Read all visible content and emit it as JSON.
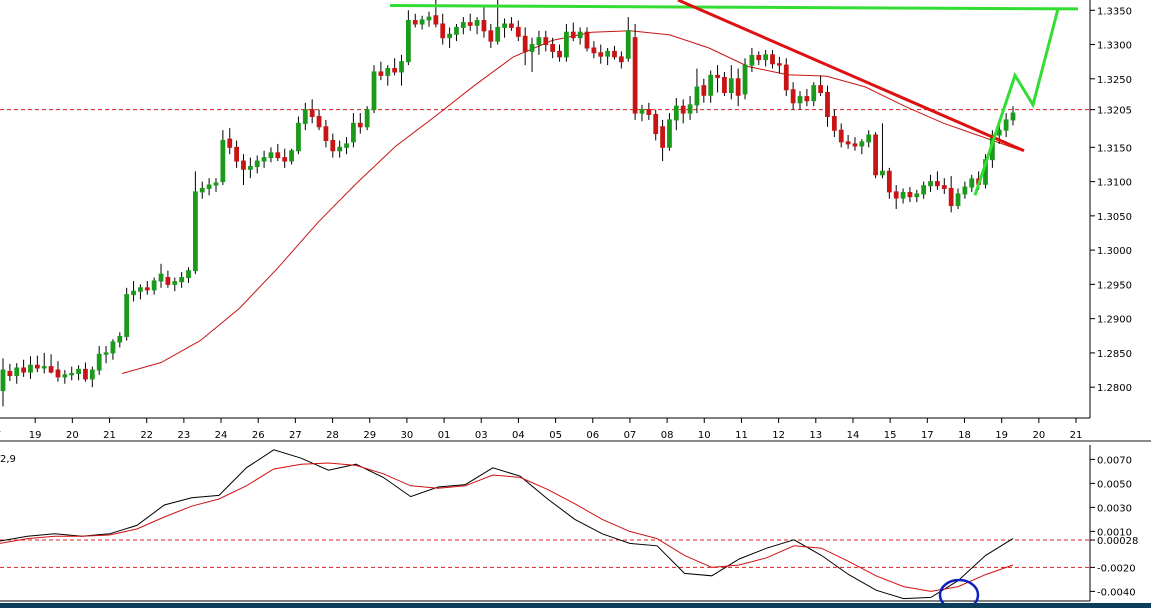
{
  "colors": {
    "bull_candle": "#1a9a1a",
    "bear_candle": "#c81414",
    "moving_average": "#c81414",
    "resistance_line": "#33dd33",
    "trendline": "#dd1111",
    "projection": "#33dd33",
    "reference_line": "#dd2222",
    "macd": "#000000",
    "signal": "#d01010",
    "highlight_circle": "#1020c0",
    "axis": "#000000",
    "separator": "#8a8a8a",
    "bottom_bar": "#0d3d5c"
  },
  "chart_data": [
    {
      "type": "candlestick",
      "title": "",
      "xlabel": "",
      "ylabel": "",
      "y_ticks": [
        "1.3350",
        "1.3300",
        "1.3250",
        "1.3205",
        "1.3150",
        "1.3100",
        "1.3050",
        "1.3000",
        "1.2950",
        "1.2900",
        "1.2850",
        "1.2800"
      ],
      "x_ticks": [
        "7",
        "19",
        "20",
        "21",
        "22",
        "23",
        "24",
        "26",
        "27",
        "28",
        "29",
        "30",
        "01",
        "03",
        "04",
        "05",
        "06",
        "07",
        "08",
        "10",
        "11",
        "12",
        "13",
        "14",
        "15",
        "17",
        "18",
        "19",
        "20",
        "21"
      ],
      "ylim": [
        1.2755,
        1.3365
      ],
      "reference_level": 1.3205,
      "candles": [
        [
          1.2795,
          1.2842,
          1.2772,
          1.2825
        ],
        [
          1.2823,
          1.2834,
          1.2809,
          1.2817
        ],
        [
          1.2817,
          1.2835,
          1.2805,
          1.2828
        ],
        [
          1.2828,
          1.284,
          1.2815,
          1.2822
        ],
        [
          1.2822,
          1.2845,
          1.2812,
          1.2832
        ],
        [
          1.2832,
          1.2846,
          1.2822,
          1.2828
        ],
        [
          1.2828,
          1.285,
          1.282,
          1.283
        ],
        [
          1.283,
          1.2848,
          1.282,
          1.2822
        ],
        [
          1.2825,
          1.2838,
          1.2808,
          1.2815
        ],
        [
          1.2815,
          1.2825,
          1.2805,
          1.2818
        ],
        [
          1.2818,
          1.283,
          1.281,
          1.282
        ],
        [
          1.282,
          1.2832,
          1.281,
          1.2826
        ],
        [
          1.2826,
          1.2836,
          1.2808,
          1.2812
        ],
        [
          1.2812,
          1.283,
          1.28,
          1.2825
        ],
        [
          1.2825,
          1.286,
          1.2818,
          1.2848
        ],
        [
          1.2848,
          1.286,
          1.2835,
          1.285
        ],
        [
          1.285,
          1.287,
          1.284,
          1.2866
        ],
        [
          1.2866,
          1.288,
          1.2858,
          1.2874
        ],
        [
          1.2874,
          1.2945,
          1.2868,
          1.2935
        ],
        [
          1.2935,
          1.2955,
          1.2925,
          1.294
        ],
        [
          1.294,
          1.295,
          1.2928,
          1.2945
        ],
        [
          1.2945,
          1.2955,
          1.2935,
          1.2942
        ],
        [
          1.2942,
          1.296,
          1.2935,
          1.2955
        ],
        [
          1.2955,
          1.298,
          1.2945,
          1.2965
        ],
        [
          1.296,
          1.297,
          1.2945,
          1.295
        ],
        [
          1.295,
          1.296,
          1.294,
          1.2954
        ],
        [
          1.2954,
          1.2968,
          1.2945,
          1.296
        ],
        [
          1.296,
          1.2975,
          1.2952,
          1.297
        ],
        [
          1.297,
          1.3115,
          1.2965,
          1.3085
        ],
        [
          1.3085,
          1.31,
          1.3075,
          1.309
        ],
        [
          1.309,
          1.3105,
          1.308,
          1.3095
        ],
        [
          1.3095,
          1.3105,
          1.3085,
          1.3098
        ],
        [
          1.31,
          1.3175,
          1.3095,
          1.316
        ],
        [
          1.3162,
          1.3178,
          1.314,
          1.315
        ],
        [
          1.315,
          1.316,
          1.312,
          1.313
        ],
        [
          1.313,
          1.314,
          1.3095,
          1.3118
        ],
        [
          1.3118,
          1.3135,
          1.3105,
          1.3122
        ],
        [
          1.3122,
          1.3138,
          1.3112,
          1.313
        ],
        [
          1.313,
          1.3145,
          1.312,
          1.3135
        ],
        [
          1.3135,
          1.315,
          1.3128,
          1.3142
        ],
        [
          1.3142,
          1.3155,
          1.313,
          1.3135
        ],
        [
          1.3135,
          1.3148,
          1.312,
          1.313
        ],
        [
          1.313,
          1.3148,
          1.3125,
          1.3145
        ],
        [
          1.3145,
          1.3195,
          1.314,
          1.3185
        ],
        [
          1.3185,
          1.3215,
          1.3175,
          1.3205
        ],
        [
          1.3205,
          1.322,
          1.3185,
          1.3195
        ],
        [
          1.3195,
          1.3205,
          1.3175,
          1.318
        ],
        [
          1.318,
          1.319,
          1.315,
          1.316
        ],
        [
          1.316,
          1.317,
          1.3135,
          1.3145
        ],
        [
          1.3145,
          1.316,
          1.3135,
          1.315
        ],
        [
          1.315,
          1.3165,
          1.314,
          1.3155
        ],
        [
          1.3158,
          1.32,
          1.315,
          1.3185
        ],
        [
          1.3185,
          1.32,
          1.317,
          1.318
        ],
        [
          1.318,
          1.321,
          1.3175,
          1.3205
        ],
        [
          1.3205,
          1.327,
          1.32,
          1.326
        ],
        [
          1.326,
          1.3275,
          1.3248,
          1.3255
        ],
        [
          1.3255,
          1.327,
          1.324,
          1.3265
        ],
        [
          1.3265,
          1.328,
          1.3255,
          1.326
        ],
        [
          1.326,
          1.3285,
          1.324,
          1.3275
        ],
        [
          1.3275,
          1.335,
          1.327,
          1.3335
        ],
        [
          1.3335,
          1.3345,
          1.3325,
          1.333
        ],
        [
          1.333,
          1.3342,
          1.3322,
          1.3336
        ],
        [
          1.3336,
          1.3348,
          1.3326,
          1.334
        ],
        [
          1.3342,
          1.3365,
          1.3325,
          1.333
        ],
        [
          1.333,
          1.3345,
          1.33,
          1.331
        ],
        [
          1.331,
          1.3325,
          1.3295,
          1.3315
        ],
        [
          1.3315,
          1.333,
          1.3305,
          1.3325
        ],
        [
          1.3325,
          1.334,
          1.3315,
          1.3332
        ],
        [
          1.3332,
          1.3345,
          1.332,
          1.3328
        ],
        [
          1.3328,
          1.334,
          1.3315,
          1.3335
        ],
        [
          1.3335,
          1.3355,
          1.331,
          1.332
        ],
        [
          1.332,
          1.333,
          1.3295,
          1.3305
        ],
        [
          1.3305,
          1.3365,
          1.33,
          1.3325
        ],
        [
          1.3325,
          1.3338,
          1.331,
          1.333
        ],
        [
          1.333,
          1.334,
          1.332,
          1.3325
        ],
        [
          1.3325,
          1.3335,
          1.3305,
          1.3312
        ],
        [
          1.3312,
          1.3325,
          1.327,
          1.329
        ],
        [
          1.329,
          1.331,
          1.326,
          1.33
        ],
        [
          1.33,
          1.332,
          1.3285,
          1.331
        ],
        [
          1.331,
          1.332,
          1.329,
          1.33
        ],
        [
          1.33,
          1.331,
          1.328,
          1.329
        ],
        [
          1.329,
          1.33,
          1.3275,
          1.3282
        ],
        [
          1.3282,
          1.333,
          1.3275,
          1.3318
        ],
        [
          1.3318,
          1.3332,
          1.3305,
          1.331
        ],
        [
          1.331,
          1.3325,
          1.33,
          1.3318
        ],
        [
          1.3318,
          1.3325,
          1.329,
          1.3295
        ],
        [
          1.3295,
          1.3305,
          1.328,
          1.3288
        ],
        [
          1.3288,
          1.33,
          1.3272,
          1.3283
        ],
        [
          1.3283,
          1.3295,
          1.327,
          1.329
        ],
        [
          1.329,
          1.3298,
          1.3278,
          1.3282
        ],
        [
          1.3282,
          1.329,
          1.3265,
          1.3275
        ],
        [
          1.328,
          1.334,
          1.3275,
          1.332
        ],
        [
          1.331,
          1.333,
          1.319,
          1.32
        ],
        [
          1.32,
          1.3212,
          1.3188,
          1.3205
        ],
        [
          1.3205,
          1.3215,
          1.319,
          1.3198
        ],
        [
          1.3198,
          1.3205,
          1.316,
          1.317
        ],
        [
          1.318,
          1.319,
          1.313,
          1.315
        ],
        [
          1.315,
          1.32,
          1.3145,
          1.319
        ],
        [
          1.319,
          1.3222,
          1.3175,
          1.321
        ],
        [
          1.321,
          1.322,
          1.3185,
          1.32
        ],
        [
          1.32,
          1.3225,
          1.319,
          1.3212
        ],
        [
          1.3212,
          1.3265,
          1.32,
          1.3238
        ],
        [
          1.324,
          1.325,
          1.3215,
          1.3226
        ],
        [
          1.3226,
          1.3262,
          1.3215,
          1.3255
        ],
        [
          1.3255,
          1.327,
          1.323,
          1.3252
        ],
        [
          1.3252,
          1.326,
          1.3225,
          1.323
        ],
        [
          1.323,
          1.327,
          1.322,
          1.325
        ],
        [
          1.325,
          1.3265,
          1.321,
          1.3226
        ],
        [
          1.3228,
          1.328,
          1.322,
          1.327
        ],
        [
          1.327,
          1.3295,
          1.326,
          1.3284
        ],
        [
          1.3284,
          1.329,
          1.327,
          1.3278
        ],
        [
          1.3278,
          1.3292,
          1.3268,
          1.3285
        ],
        [
          1.3285,
          1.3292,
          1.3265,
          1.3272
        ],
        [
          1.3272,
          1.3282,
          1.3258,
          1.327
        ],
        [
          1.327,
          1.328,
          1.3225,
          1.3234
        ],
        [
          1.3234,
          1.3245,
          1.3205,
          1.3215
        ],
        [
          1.3215,
          1.3232,
          1.3205,
          1.3224
        ],
        [
          1.3224,
          1.3235,
          1.321,
          1.3218
        ],
        [
          1.3218,
          1.3245,
          1.321,
          1.324
        ],
        [
          1.324,
          1.3255,
          1.3225,
          1.323
        ],
        [
          1.323,
          1.324,
          1.318,
          1.3195
        ],
        [
          1.3195,
          1.3205,
          1.3165,
          1.3175
        ],
        [
          1.3175,
          1.3185,
          1.315,
          1.3158
        ],
        [
          1.3158,
          1.3168,
          1.3148,
          1.3155
        ],
        [
          1.3155,
          1.3165,
          1.3145,
          1.3152
        ],
        [
          1.3152,
          1.3162,
          1.314,
          1.3158
        ],
        [
          1.3158,
          1.3175,
          1.315,
          1.3168
        ],
        [
          1.3168,
          1.3172,
          1.3105,
          1.311
        ],
        [
          1.311,
          1.3185,
          1.3105,
          1.3115
        ],
        [
          1.3115,
          1.312,
          1.3075,
          1.3085
        ],
        [
          1.3085,
          1.3095,
          1.306,
          1.3076
        ],
        [
          1.3076,
          1.309,
          1.3068,
          1.3084
        ],
        [
          1.3084,
          1.3092,
          1.307,
          1.3078
        ],
        [
          1.3078,
          1.3088,
          1.307,
          1.3082
        ],
        [
          1.3082,
          1.31,
          1.3075,
          1.3094
        ],
        [
          1.3094,
          1.311,
          1.3085,
          1.31
        ],
        [
          1.31,
          1.3115,
          1.3088,
          1.3094
        ],
        [
          1.3094,
          1.3105,
          1.3082,
          1.309
        ],
        [
          1.309,
          1.3108,
          1.3055,
          1.3065
        ],
        [
          1.3065,
          1.309,
          1.306,
          1.3082
        ],
        [
          1.3082,
          1.31,
          1.3075,
          1.3092
        ],
        [
          1.3092,
          1.311,
          1.3085,
          1.3104
        ],
        [
          1.3104,
          1.3115,
          1.3088,
          1.3096
        ],
        [
          1.3096,
          1.314,
          1.309,
          1.3132
        ],
        [
          1.3132,
          1.3175,
          1.312,
          1.3168
        ],
        [
          1.3168,
          1.3185,
          1.3155,
          1.3175
        ],
        [
          1.3175,
          1.32,
          1.3165,
          1.319
        ],
        [
          1.319,
          1.321,
          1.3182,
          1.32
        ]
      ],
      "moving_average": [
        1.282,
        1.2836,
        1.2868,
        1.2915,
        1.2975,
        1.304,
        1.3098,
        1.3152,
        1.3195,
        1.324,
        1.3282,
        1.3306,
        1.3318,
        1.332,
        1.3314,
        1.3295,
        1.3268,
        1.3256,
        1.3254,
        1.3238,
        1.321,
        1.3185,
        1.3165,
        1.3145
      ],
      "resistance_line": [
        1.3357,
        1.3352
      ],
      "trendline": [
        1.3365,
        1.3145
      ],
      "projection": [
        1.308,
        1.3255,
        1.3212,
        1.3352
      ]
    },
    {
      "type": "line",
      "title": "",
      "indicator_label": "2,9",
      "y_ticks": [
        "0.0070",
        "0.0050",
        "0.0030",
        "0.0010",
        "0.00028",
        "-0.0020",
        "-0.0040"
      ],
      "ylim": [
        -0.0048,
        0.0082
      ],
      "reference_levels": [
        0.00028,
        -0.002
      ],
      "series": [
        {
          "values": [
            0.0002,
            0.0006,
            0.0008,
            0.0006,
            0.0008,
            0.0015,
            0.0032,
            0.0038,
            0.004,
            0.0063,
            0.0078,
            0.0071,
            0.0061,
            0.0066,
            0.0055,
            0.0039,
            0.0047,
            0.0049,
            0.0063,
            0.0056,
            0.0037,
            0.002,
            0.0008,
            0.0,
            -0.0002,
            -0.0025,
            -0.0027,
            -0.0013,
            -0.0004,
            0.0003,
            -0.001,
            -0.0026,
            -0.0039,
            -0.0046,
            -0.0045,
            -0.0031,
            -0.001,
            0.0004
          ]
        },
        {
          "values": [
            0.0,
            0.0004,
            0.0006,
            0.0006,
            0.0007,
            0.0012,
            0.0022,
            0.0031,
            0.0037,
            0.0048,
            0.0062,
            0.0066,
            0.0067,
            0.0065,
            0.0058,
            0.0048,
            0.0046,
            0.0048,
            0.0057,
            0.0055,
            0.0045,
            0.0033,
            0.002,
            0.001,
            0.0004,
            -0.001,
            -0.002,
            -0.0018,
            -0.0012,
            -0.0002,
            -0.0004,
            -0.0015,
            -0.0027,
            -0.0036,
            -0.004,
            -0.0036,
            -0.0026,
            -0.0018
          ]
        }
      ]
    }
  ]
}
